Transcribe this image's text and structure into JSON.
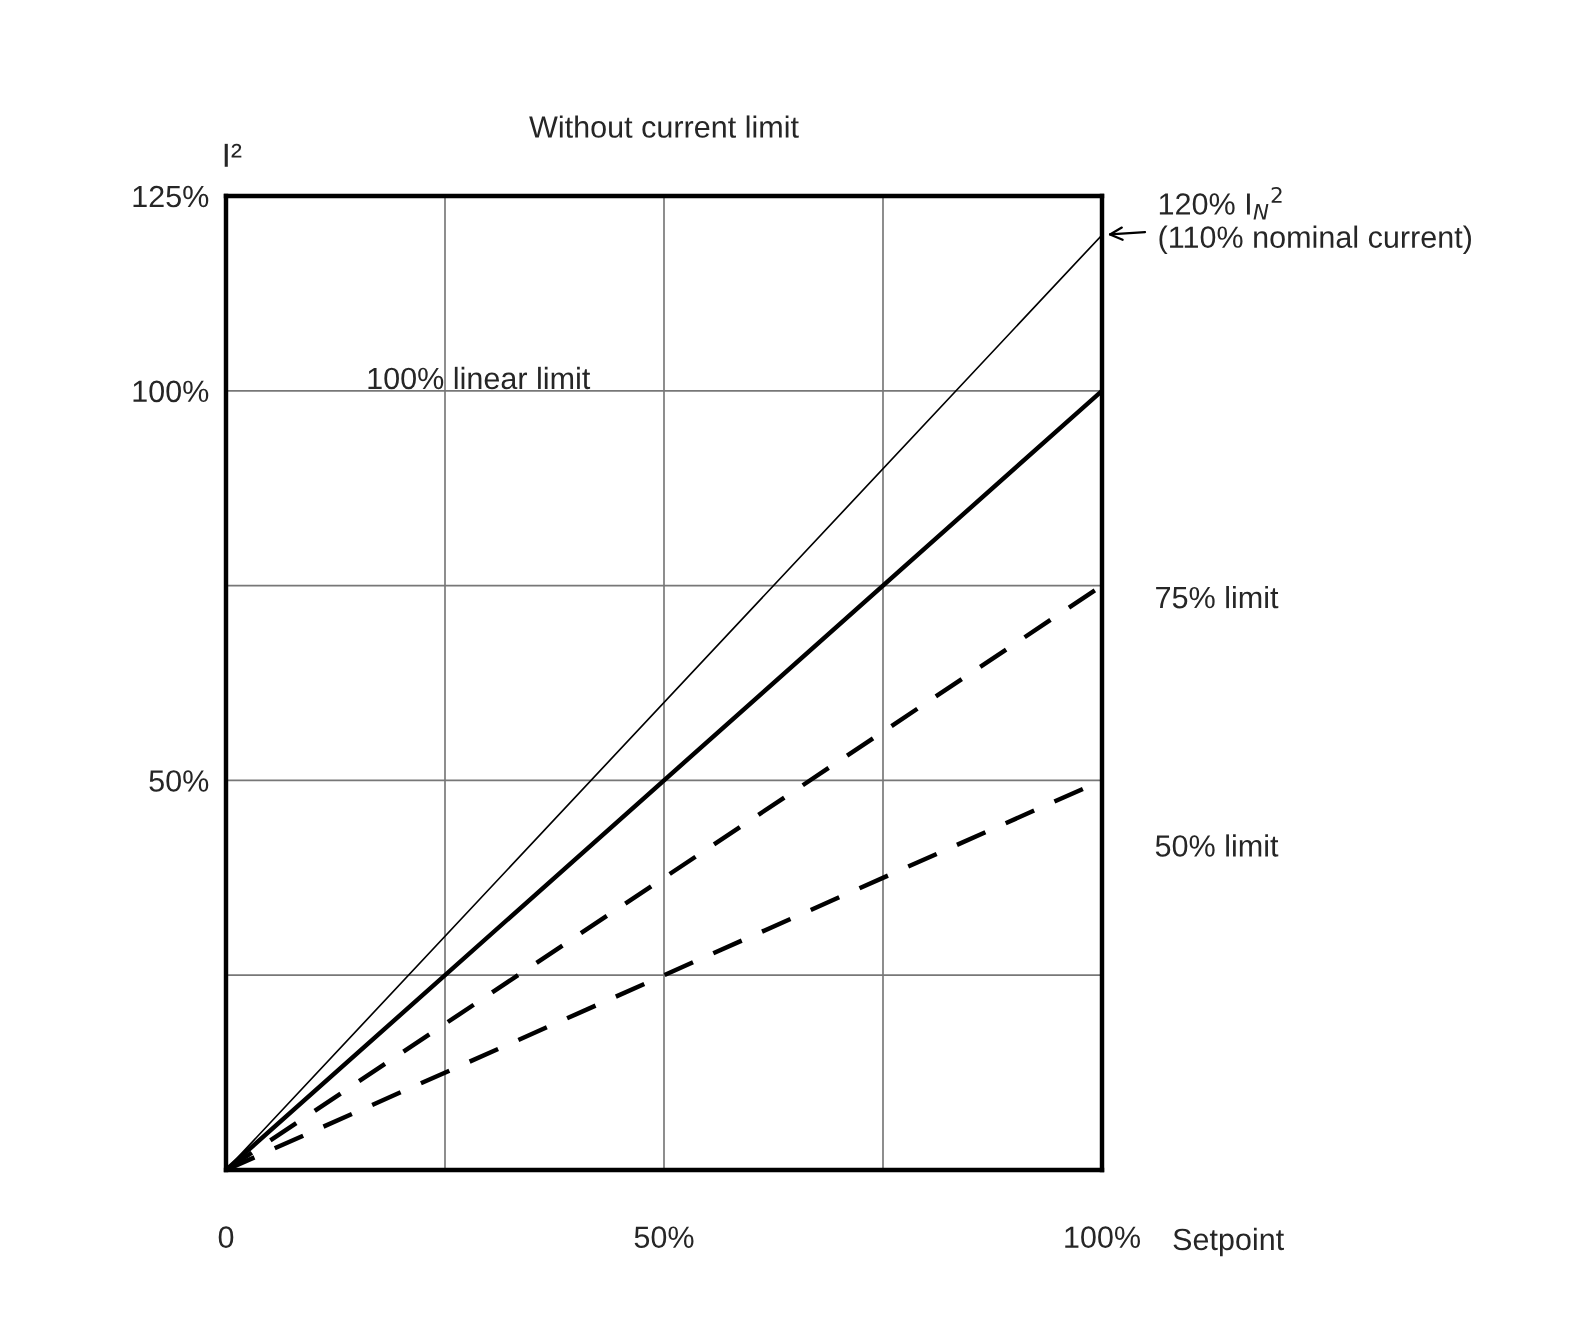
{
  "chart_data": {
    "type": "line",
    "title": "Without current limit",
    "xlabel": "Setpoint",
    "ylabel": "I²",
    "x": [
      0,
      100
    ],
    "series": [
      {
        "color": "#000000",
        "values": [
          0,
          120
        ],
        "line_style": "solid"
      },
      {
        "color": "#000000",
        "values": [
          0,
          100
        ],
        "line_style": "solid"
      },
      {
        "color": "#000000",
        "values": [
          0,
          75
        ],
        "line_style": "dashed"
      },
      {
        "color": "#000000",
        "values": [
          0,
          50
        ],
        "line_style": "dashed"
      }
    ],
    "xlim": [
      0,
      100
    ],
    "ylim": [
      0,
      125
    ],
    "xticks": [
      {
        "value": 0,
        "label": "0"
      },
      {
        "value": 25,
        "label": null
      },
      {
        "value": 50,
        "label": "50%"
      },
      {
        "value": 75,
        "label": null
      },
      {
        "value": 100,
        "label": "100%"
      }
    ],
    "yticks": [
      {
        "value": 25,
        "label": null
      },
      {
        "value": 50,
        "label": "50%"
      },
      {
        "value": 75,
        "label": null
      },
      {
        "value": 100,
        "label": "100%"
      },
      {
        "value": 125,
        "label": "125%"
      }
    ],
    "grid": true,
    "legend": false,
    "marker": "none",
    "annotations": [
      {
        "text": "120% I$_{N}$$^{2}$\n(110% nominal current)",
        "x": 100,
        "y": 120
      },
      "100% linear limit",
      "75% limit",
      "50% limit"
    ]
  }
}
